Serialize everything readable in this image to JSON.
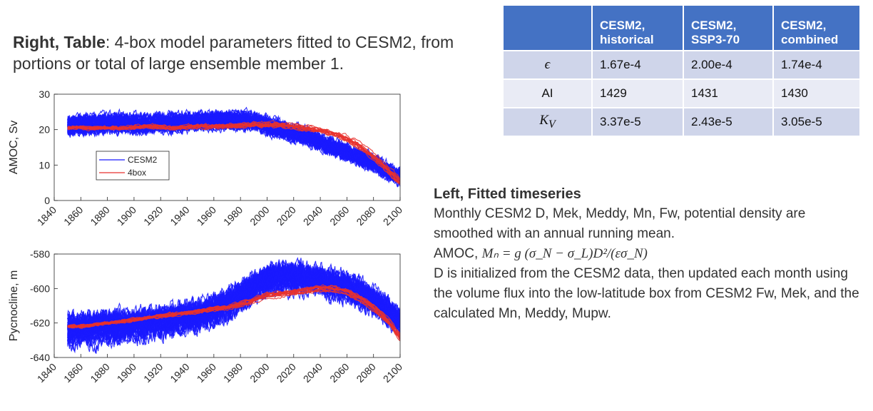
{
  "right_title": {
    "bold": "Right, Table",
    "rest": ": 4-box model parameters fitted to CESM2, from portions or total of large ensemble member 1."
  },
  "table": {
    "headers": [
      "",
      "CESM2, historical",
      "CESM2, SSP3-70",
      "CESM2, combined"
    ],
    "rows": [
      {
        "label": "ϵ",
        "values": [
          "1.67e-4",
          "2.00e-4",
          "1.74e-4"
        ]
      },
      {
        "label": "AI",
        "values": [
          "1429",
          "1431",
          "1430"
        ]
      },
      {
        "label": "K_V",
        "values": [
          "3.37e-5",
          "2.43e-5",
          "3.05e-5"
        ]
      }
    ]
  },
  "left_text": {
    "heading": "Left, Fitted timeseries",
    "para1": "Monthly CESM2 D, Mek, Meddy, Mn, Fw, potential density are smoothed with an annual running mean.",
    "formula_prefix": "AMOC, ",
    "formula": "Mₙ = g (σ_N − σ_L)D²/(εσ_N)",
    "para2": "D is initialized from the CESM2 data, then updated each month using the volume flux into the low-latitude box from CESM2 Fw, Mek, and the calculated Mn, Meddy, Mupw."
  },
  "colors": {
    "cesm2": "#1a1aff",
    "fourbox": "#e8322e",
    "header": "#4472c4"
  },
  "chart_data": [
    {
      "type": "line",
      "title": "",
      "xlabel": "",
      "ylabel": "AMOC, Sv",
      "xlim": [
        1840,
        2100
      ],
      "ylim": [
        0,
        30
      ],
      "xticks": [
        1840,
        1860,
        1880,
        1900,
        1920,
        1940,
        1960,
        1980,
        2000,
        2020,
        2040,
        2060,
        2080,
        2100
      ],
      "yticks": [
        0,
        10,
        20,
        30
      ],
      "grid": false,
      "legend": {
        "position": "lower-left",
        "entries": [
          "CESM2",
          "4box"
        ]
      },
      "series": [
        {
          "name": "CESM2",
          "x": [
            1850,
            1870,
            1890,
            1910,
            1930,
            1950,
            1970,
            1990,
            2000,
            2010,
            2020,
            2030,
            2040,
            2050,
            2060,
            2070,
            2080,
            2090,
            2100
          ],
          "y": [
            21,
            21.5,
            22,
            21.5,
            22,
            22.5,
            22.5,
            22.5,
            21,
            20,
            19,
            18,
            16.5,
            15,
            13.5,
            12,
            10.5,
            8.5,
            6.5
          ]
        },
        {
          "name": "4box",
          "x": [
            1850,
            1870,
            1890,
            1910,
            1930,
            1950,
            1970,
            1990,
            2000,
            2010,
            2020,
            2030,
            2040,
            2050,
            2060,
            2070,
            2080,
            2090,
            2100
          ],
          "y": [
            20.5,
            20.5,
            20.5,
            21,
            20.5,
            21,
            21,
            21.5,
            21.5,
            21.5,
            21,
            20.5,
            20,
            19,
            17.5,
            15.5,
            12.5,
            9,
            5.5
          ]
        }
      ]
    },
    {
      "type": "line",
      "title": "",
      "xlabel": "",
      "ylabel": "Pycnocline, m",
      "xlim": [
        1840,
        2100
      ],
      "ylim": [
        -640,
        -580
      ],
      "xticks": [
        1840,
        1860,
        1880,
        1900,
        1920,
        1940,
        1960,
        1980,
        2000,
        2020,
        2040,
        2060,
        2080,
        2100
      ],
      "yticks": [
        -640,
        -620,
        -600,
        -580
      ],
      "grid": false,
      "series": [
        {
          "name": "CESM2",
          "x": [
            1850,
            1860,
            1870,
            1880,
            1890,
            1900,
            1910,
            1920,
            1930,
            1940,
            1950,
            1960,
            1970,
            1980,
            1990,
            2000,
            2010,
            2020,
            2030,
            2040,
            2050,
            2060,
            2070,
            2080,
            2090,
            2100
          ],
          "y": [
            -625,
            -624,
            -624,
            -623,
            -623,
            -622,
            -621,
            -620,
            -619,
            -617,
            -616,
            -613,
            -610,
            -606,
            -600,
            -596,
            -594,
            -594,
            -595,
            -596,
            -598,
            -600,
            -603,
            -608,
            -613,
            -620
          ]
        },
        {
          "name": "4box",
          "x": [
            1850,
            1860,
            1870,
            1880,
            1890,
            1900,
            1910,
            1920,
            1930,
            1940,
            1950,
            1960,
            1970,
            1980,
            1990,
            2000,
            2010,
            2020,
            2030,
            2040,
            2050,
            2060,
            2070,
            2080,
            2090,
            2100
          ],
          "y": [
            -622,
            -622,
            -621,
            -620,
            -619,
            -618,
            -617,
            -616,
            -615,
            -614,
            -613,
            -612,
            -611,
            -609,
            -607,
            -604,
            -603,
            -602,
            -601,
            -600,
            -600,
            -602,
            -606,
            -611,
            -618,
            -628
          ]
        }
      ]
    }
  ]
}
